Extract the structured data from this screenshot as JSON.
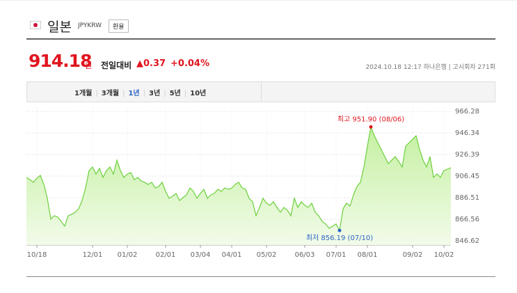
{
  "header": {
    "title": "일본",
    "code": "JPYKRW",
    "button": "환율"
  },
  "quote": {
    "price": "914.18",
    "unit": "원",
    "change_label": "전일대비",
    "change": "▲0.37",
    "change_pct": "+0.04%",
    "datetime": "2024.10.18 12:17",
    "bank": "하나은행",
    "round": "고시회차 271회"
  },
  "tabs": {
    "items": [
      "1개월",
      "3개월",
      "1년",
      "3년",
      "5년",
      "10년"
    ],
    "selected": "1년"
  },
  "chart_data": {
    "type": "line",
    "color": "#6bd03c",
    "categories": [
      null,
      null,
      null,
      "10/18",
      null,
      null,
      null,
      null,
      null,
      null,
      null,
      null,
      null,
      null,
      null,
      null,
      null,
      null,
      null,
      "12/01",
      null,
      null,
      null,
      null,
      null,
      null,
      null,
      null,
      null,
      "01/02",
      null,
      null,
      null,
      null,
      null,
      null,
      null,
      null,
      null,
      null,
      "02/01",
      null,
      null,
      null,
      null,
      null,
      null,
      null,
      null,
      null,
      "03/04",
      null,
      null,
      null,
      null,
      null,
      null,
      null,
      null,
      "04/01",
      null,
      null,
      null,
      null,
      null,
      null,
      null,
      null,
      null,
      "05/02",
      null,
      null,
      null,
      null,
      null,
      null,
      null,
      null,
      null,
      null,
      "06/03",
      null,
      null,
      null,
      null,
      null,
      null,
      null,
      null,
      "07/01",
      null,
      null,
      null,
      null,
      null,
      null,
      null,
      null,
      "08/01",
      null,
      null,
      null,
      null,
      null,
      null,
      null,
      null,
      null,
      null,
      null,
      null,
      "09/02",
      null,
      null,
      null,
      null,
      null,
      null,
      null,
      null,
      "10/02",
      null,
      null
    ],
    "values": [
      905.2,
      903.2,
      900.7,
      904.5,
      907.1,
      898.7,
      885.9,
      866.6,
      869.8,
      868.5,
      864.6,
      860.1,
      869.8,
      871.1,
      873.0,
      876.2,
      883.9,
      895.5,
      911.6,
      914.8,
      908.4,
      913.5,
      905.2,
      911.6,
      914.8,
      908.4,
      921.2,
      911.6,
      905.2,
      908.4,
      909.7,
      903.2,
      905.2,
      901.9,
      900.7,
      898.7,
      900.7,
      895.5,
      896.8,
      900.7,
      892.3,
      885.9,
      887.8,
      890.4,
      883.9,
      886.5,
      889.1,
      895.5,
      892.3,
      885.9,
      890.4,
      894.2,
      885.9,
      889.1,
      890.4,
      894.2,
      892.3,
      895.5,
      894.2,
      895.5,
      898.7,
      900.7,
      895.5,
      894.2,
      885.9,
      882.7,
      869.8,
      877.5,
      885.9,
      881.4,
      879.4,
      882.7,
      877.5,
      873.0,
      877.5,
      874.9,
      869.8,
      885.9,
      877.5,
      882.7,
      879.4,
      877.5,
      881.4,
      873.0,
      869.8,
      864.6,
      862.1,
      858.2,
      860.1,
      862.1,
      856.19,
      876.2,
      881.4,
      878.8,
      889.1,
      896.8,
      900.7,
      914.8,
      934.1,
      951.9,
      943.7,
      937.3,
      930.9,
      924.4,
      918.0,
      921.2,
      924.4,
      919.9,
      914.8,
      934.1,
      937.3,
      940.5,
      943.7,
      930.9,
      921.2,
      914.8,
      924.4,
      905.2,
      908.4,
      905.2,
      911.6,
      912.9,
      914.18
    ],
    "ylim": [
      846.62,
      966.28
    ],
    "yticks": [
      846.62,
      866.56,
      886.51,
      906.45,
      926.39,
      946.34,
      966.28
    ],
    "grid": true,
    "annotations": [
      {
        "text": "최고 951.90 (08/06)",
        "value": 951.9,
        "color": "#e0161f"
      },
      {
        "text": "최저 856.19 (07/10)",
        "value": 856.19,
        "color": "#2a64c4"
      }
    ]
  }
}
